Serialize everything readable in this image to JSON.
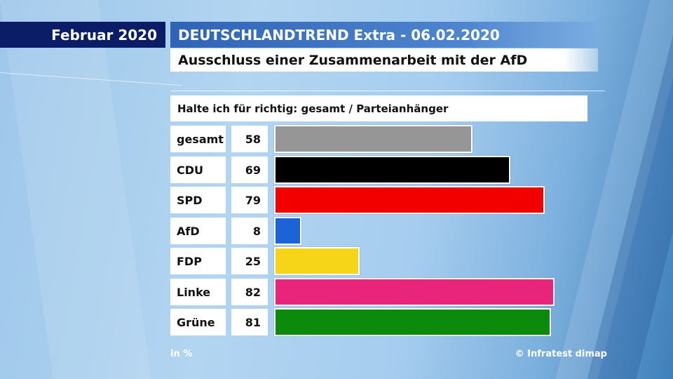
{
  "header": {
    "date": "Februar 2020",
    "title": "DEUTSCHLANDTREND Extra - 06.02.2020",
    "subtitle": "Ausschluss einer Zusammenarbeit mit der AfD"
  },
  "chart_data": {
    "type": "bar",
    "orientation": "horizontal",
    "title": "Halte ich für richtig: gesamt / Parteianhänger",
    "unit": "in %",
    "xlim": [
      0,
      100
    ],
    "categories": [
      "gesamt",
      "CDU",
      "SPD",
      "AfD",
      "FDP",
      "Linke",
      "Grüne"
    ],
    "values": [
      58,
      69,
      79,
      8,
      25,
      82,
      81
    ],
    "colors": [
      "#969696",
      "#000000",
      "#f20000",
      "#1b63d6",
      "#f6d418",
      "#e8257a",
      "#0b8a0b"
    ]
  },
  "footer": {
    "unit": "in %",
    "source": "© Infratest dimap"
  }
}
